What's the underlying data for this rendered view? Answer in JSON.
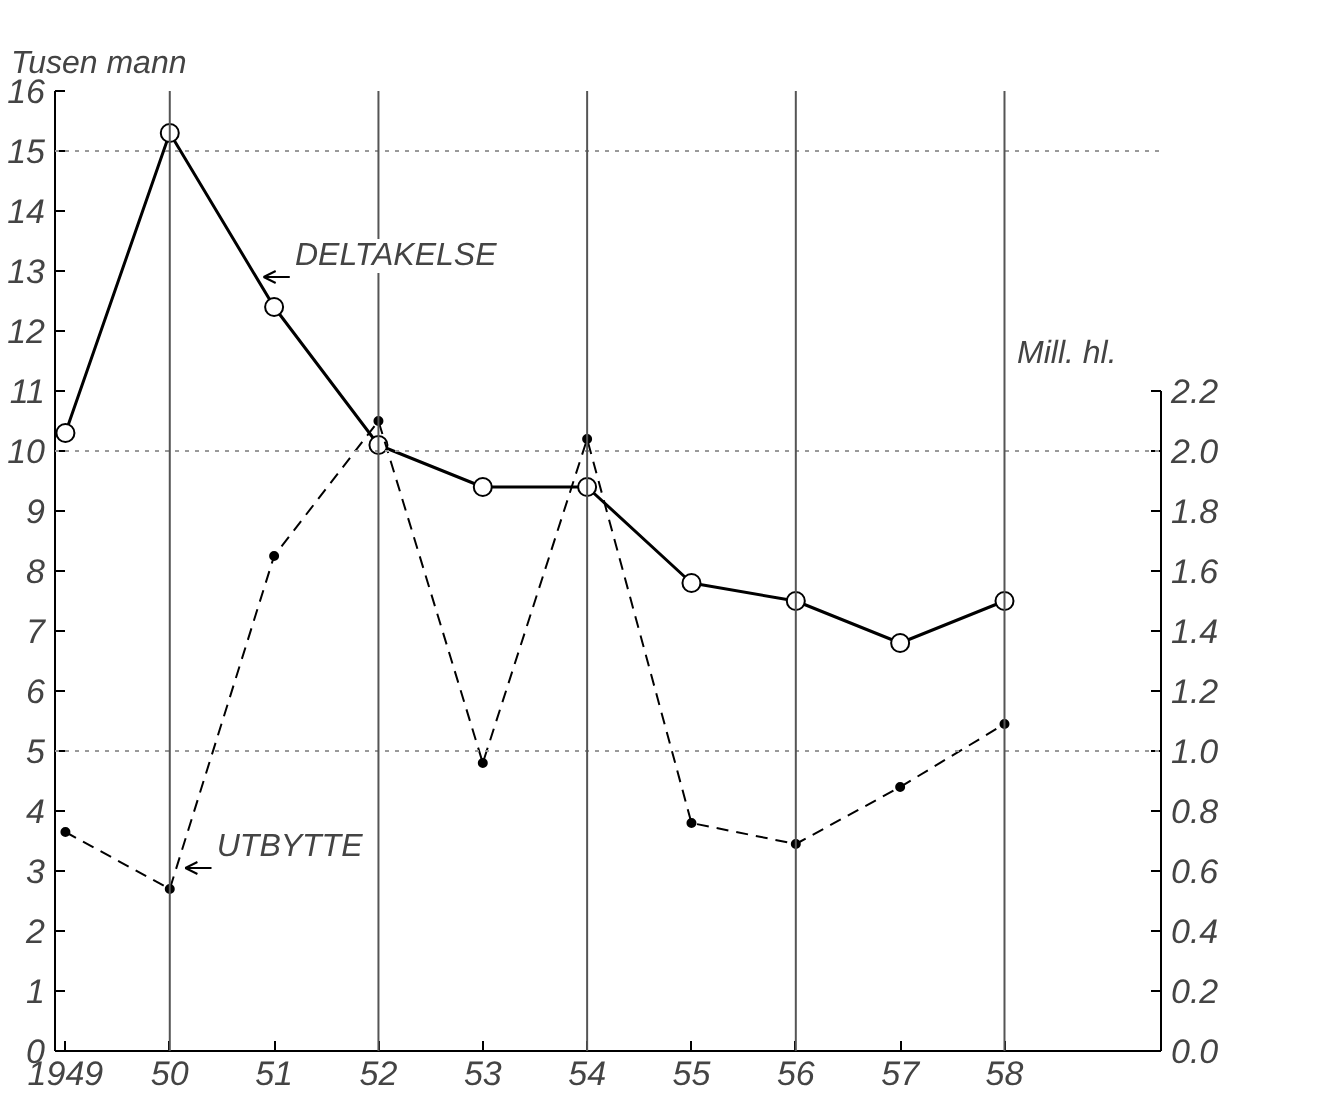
{
  "chart_data": {
    "type": "line",
    "ylabel": "Tusen mann",
    "y2label": "Mill. hl.",
    "x": [
      1949,
      1950,
      1951,
      1952,
      1953,
      1954,
      1955,
      1956,
      1957,
      1958
    ],
    "series": [
      {
        "color": "#000000",
        "line_style": "solid",
        "marker": "circle",
        "values": [
          10.3,
          15.3,
          12.4,
          10.1,
          9.4,
          9.4,
          7.8,
          7.5,
          6.8,
          7.5
        ]
      },
      {
        "color": "#000000",
        "line_style": "dashed",
        "marker": "circle",
        "axis": "y2",
        "values": [
          0.73,
          0.54,
          1.65,
          2.1,
          0.96,
          2.04,
          0.76,
          0.69,
          0.88,
          1.09
        ]
      }
    ],
    "xlim": [
      1948.9,
      1959.5
    ],
    "xticks": [
      {
        "value": 1949,
        "label": "1949"
      },
      {
        "value": 1950,
        "label": "50"
      },
      {
        "value": 1951,
        "label": "51"
      },
      {
        "value": 1952,
        "label": "52"
      },
      {
        "value": 1953,
        "label": "53"
      },
      {
        "value": 1954,
        "label": "54"
      },
      {
        "value": 1955,
        "label": "55"
      },
      {
        "value": 1956,
        "label": "56"
      },
      {
        "value": 1957,
        "label": "57"
      },
      {
        "value": 1958,
        "label": "58"
      }
    ],
    "ylim": [
      0,
      16
    ],
    "yticks": [
      0,
      1,
      2,
      3,
      4,
      5,
      6,
      7,
      8,
      9,
      10,
      11,
      12,
      13,
      14,
      15,
      16
    ],
    "y2lim": [
      0,
      3.2
    ],
    "y2ticks": [
      {
        "value": 0,
        "label": "0.0"
      },
      {
        "value": 0.2,
        "label": "0.2"
      },
      {
        "value": 0.4,
        "label": "0.4"
      },
      {
        "value": 0.6,
        "label": "0.6"
      },
      {
        "value": 0.8,
        "label": "0.8"
      },
      {
        "value": 1.0,
        "label": "1.0"
      },
      {
        "value": 1.2,
        "label": "1.2"
      },
      {
        "value": 1.4,
        "label": "1.4"
      },
      {
        "value": 1.6,
        "label": "1.6"
      },
      {
        "value": 1.8,
        "label": "1.8"
      },
      {
        "value": 2.0,
        "label": "2.0"
      },
      {
        "value": 2.2,
        "label": "2.2"
      }
    ],
    "grid": false,
    "ref_lines": [
      {
        "axis": "y",
        "value": 5,
        "color": "#999999",
        "line_style": "dotted"
      },
      {
        "axis": "y",
        "value": 10,
        "color": "#999999",
        "line_style": "dotted"
      },
      {
        "axis": "y",
        "value": 15,
        "color": "#999999",
        "line_style": "dotted"
      },
      {
        "axis": "x",
        "value": 1950,
        "color": "#555555",
        "line_style": "solid"
      },
      {
        "axis": "x",
        "value": 1952,
        "color": "#555555",
        "line_style": "solid"
      },
      {
        "axis": "x",
        "value": 1954,
        "color": "#555555",
        "line_style": "solid"
      },
      {
        "axis": "x",
        "value": 1956,
        "color": "#555555",
        "line_style": "solid"
      },
      {
        "axis": "x",
        "value": 1958,
        "color": "#555555",
        "line_style": "solid"
      }
    ],
    "annotations": [
      {
        "text": "DELTAKELSE",
        "x": 1950.9,
        "y": 12.9
      },
      {
        "text": "UTBYTTE",
        "x": 1950.15,
        "y": 3.05
      }
    ]
  }
}
